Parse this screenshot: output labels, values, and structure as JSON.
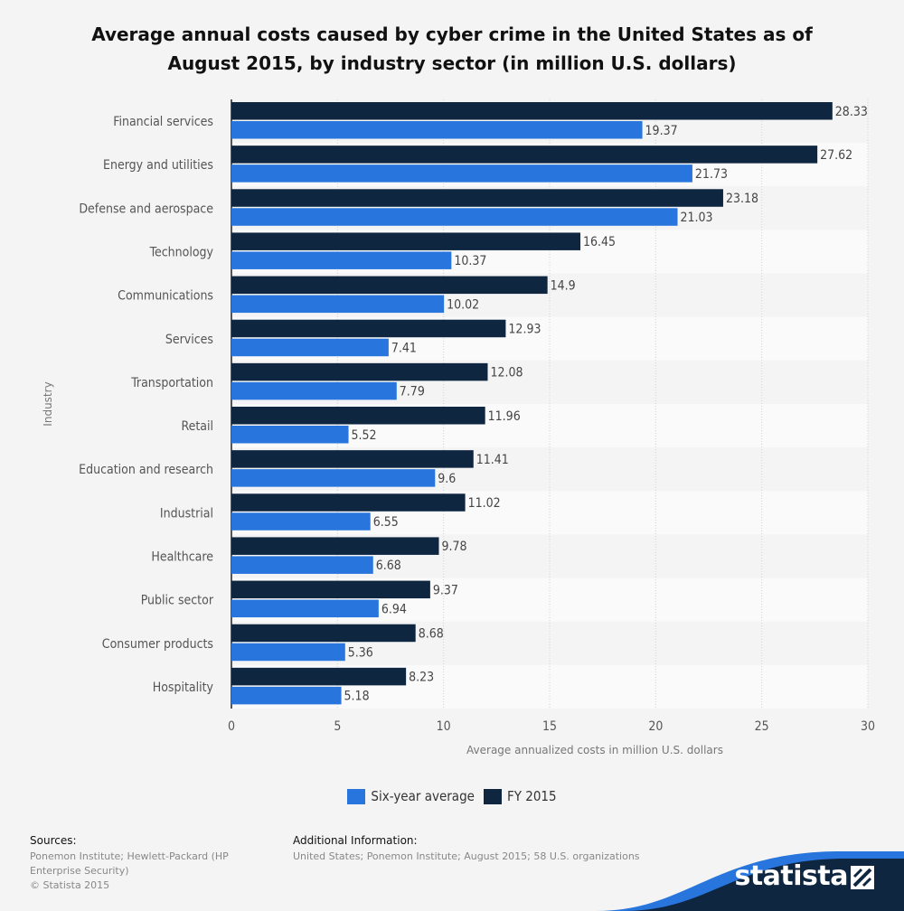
{
  "chart_data": {
    "type": "bar",
    "orientation": "horizontal",
    "title": "Average annual costs caused by cyber crime in the United States as of August 2015, by industry sector (in million U.S. dollars)",
    "xlabel": "Average annualized costs in million U.S. dollars",
    "ylabel": "Industry",
    "xlim": [
      0,
      30
    ],
    "xticks": [
      0,
      5,
      10,
      15,
      20,
      25,
      30
    ],
    "grid": true,
    "legend_position": "bottom",
    "categories": [
      "Financial services",
      "Energy and utilities",
      "Defense and aerospace",
      "Technology",
      "Communications",
      "Services",
      "Transportation",
      "Retail",
      "Education and research",
      "Industrial",
      "Healthcare",
      "Public sector",
      "Consumer products",
      "Hospitality"
    ],
    "series": [
      {
        "name": "FY 2015",
        "color": "#0f2640",
        "values": [
          28.33,
          27.62,
          23.18,
          16.45,
          14.9,
          12.93,
          12.08,
          11.96,
          11.41,
          11.02,
          9.78,
          9.37,
          8.68,
          8.23
        ]
      },
      {
        "name": "Six-year average",
        "color": "#2876dd",
        "values": [
          19.37,
          21.73,
          21.03,
          10.37,
          10.02,
          7.41,
          7.79,
          5.52,
          9.6,
          6.55,
          6.68,
          6.94,
          5.36,
          5.18
        ]
      }
    ]
  },
  "legend": {
    "items": [
      {
        "label": "Six-year average",
        "color": "#2876dd"
      },
      {
        "label": "FY 2015",
        "color": "#0f2640"
      }
    ]
  },
  "footer": {
    "sources_heading": "Sources:",
    "sources_text": "Ponemon Institute; Hewlett-Packard (HP Enterprise Security)",
    "copyright": "© Statista 2015",
    "additional_heading": "Additional Information:",
    "additional_text": "United States; Ponemon Institute; August 2015; 58 U.S. organizations"
  },
  "brand": {
    "name": "statista",
    "icon": "statista-logo-icon"
  }
}
